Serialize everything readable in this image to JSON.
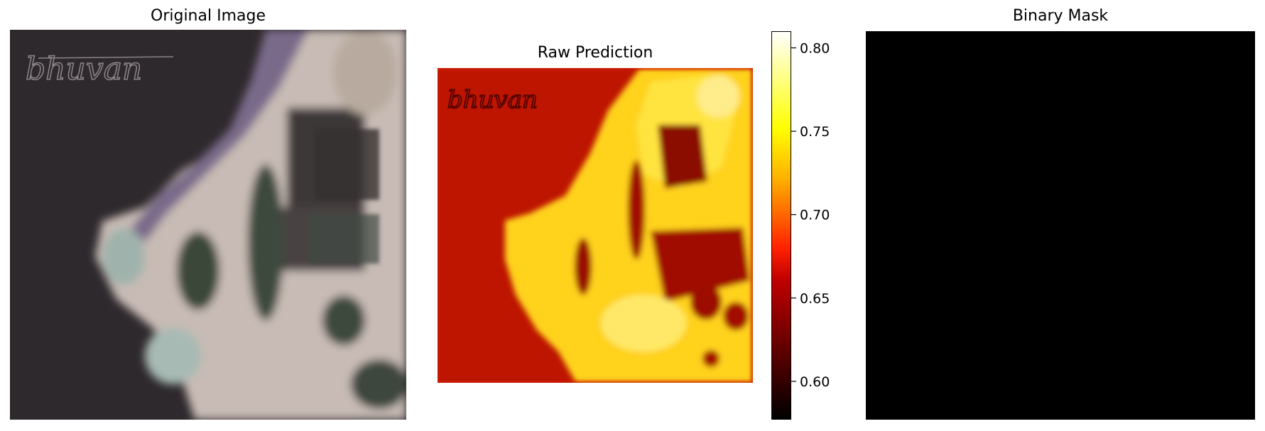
{
  "panels": {
    "original": {
      "title": "Original Image",
      "watermark": "bhuvan"
    },
    "prediction": {
      "title": "Raw Prediction",
      "watermark": "bhuvan"
    },
    "mask": {
      "title": "Binary Mask"
    }
  },
  "chart_data": {
    "type": "heatmap",
    "title": "Raw Prediction",
    "colormap": "hot",
    "colorbar": {
      "range": [
        0.577,
        0.81
      ],
      "ticks": [
        0.6,
        0.65,
        0.7,
        0.75,
        0.8
      ],
      "tick_labels": [
        "0.60",
        "0.65",
        "0.70",
        "0.75",
        "0.80"
      ]
    }
  },
  "colors": {
    "water_dark": "#2f2a2e",
    "land_light": "#c9bcb6",
    "vegetation": "#3c4a3c",
    "mask_fill": "#000000"
  }
}
